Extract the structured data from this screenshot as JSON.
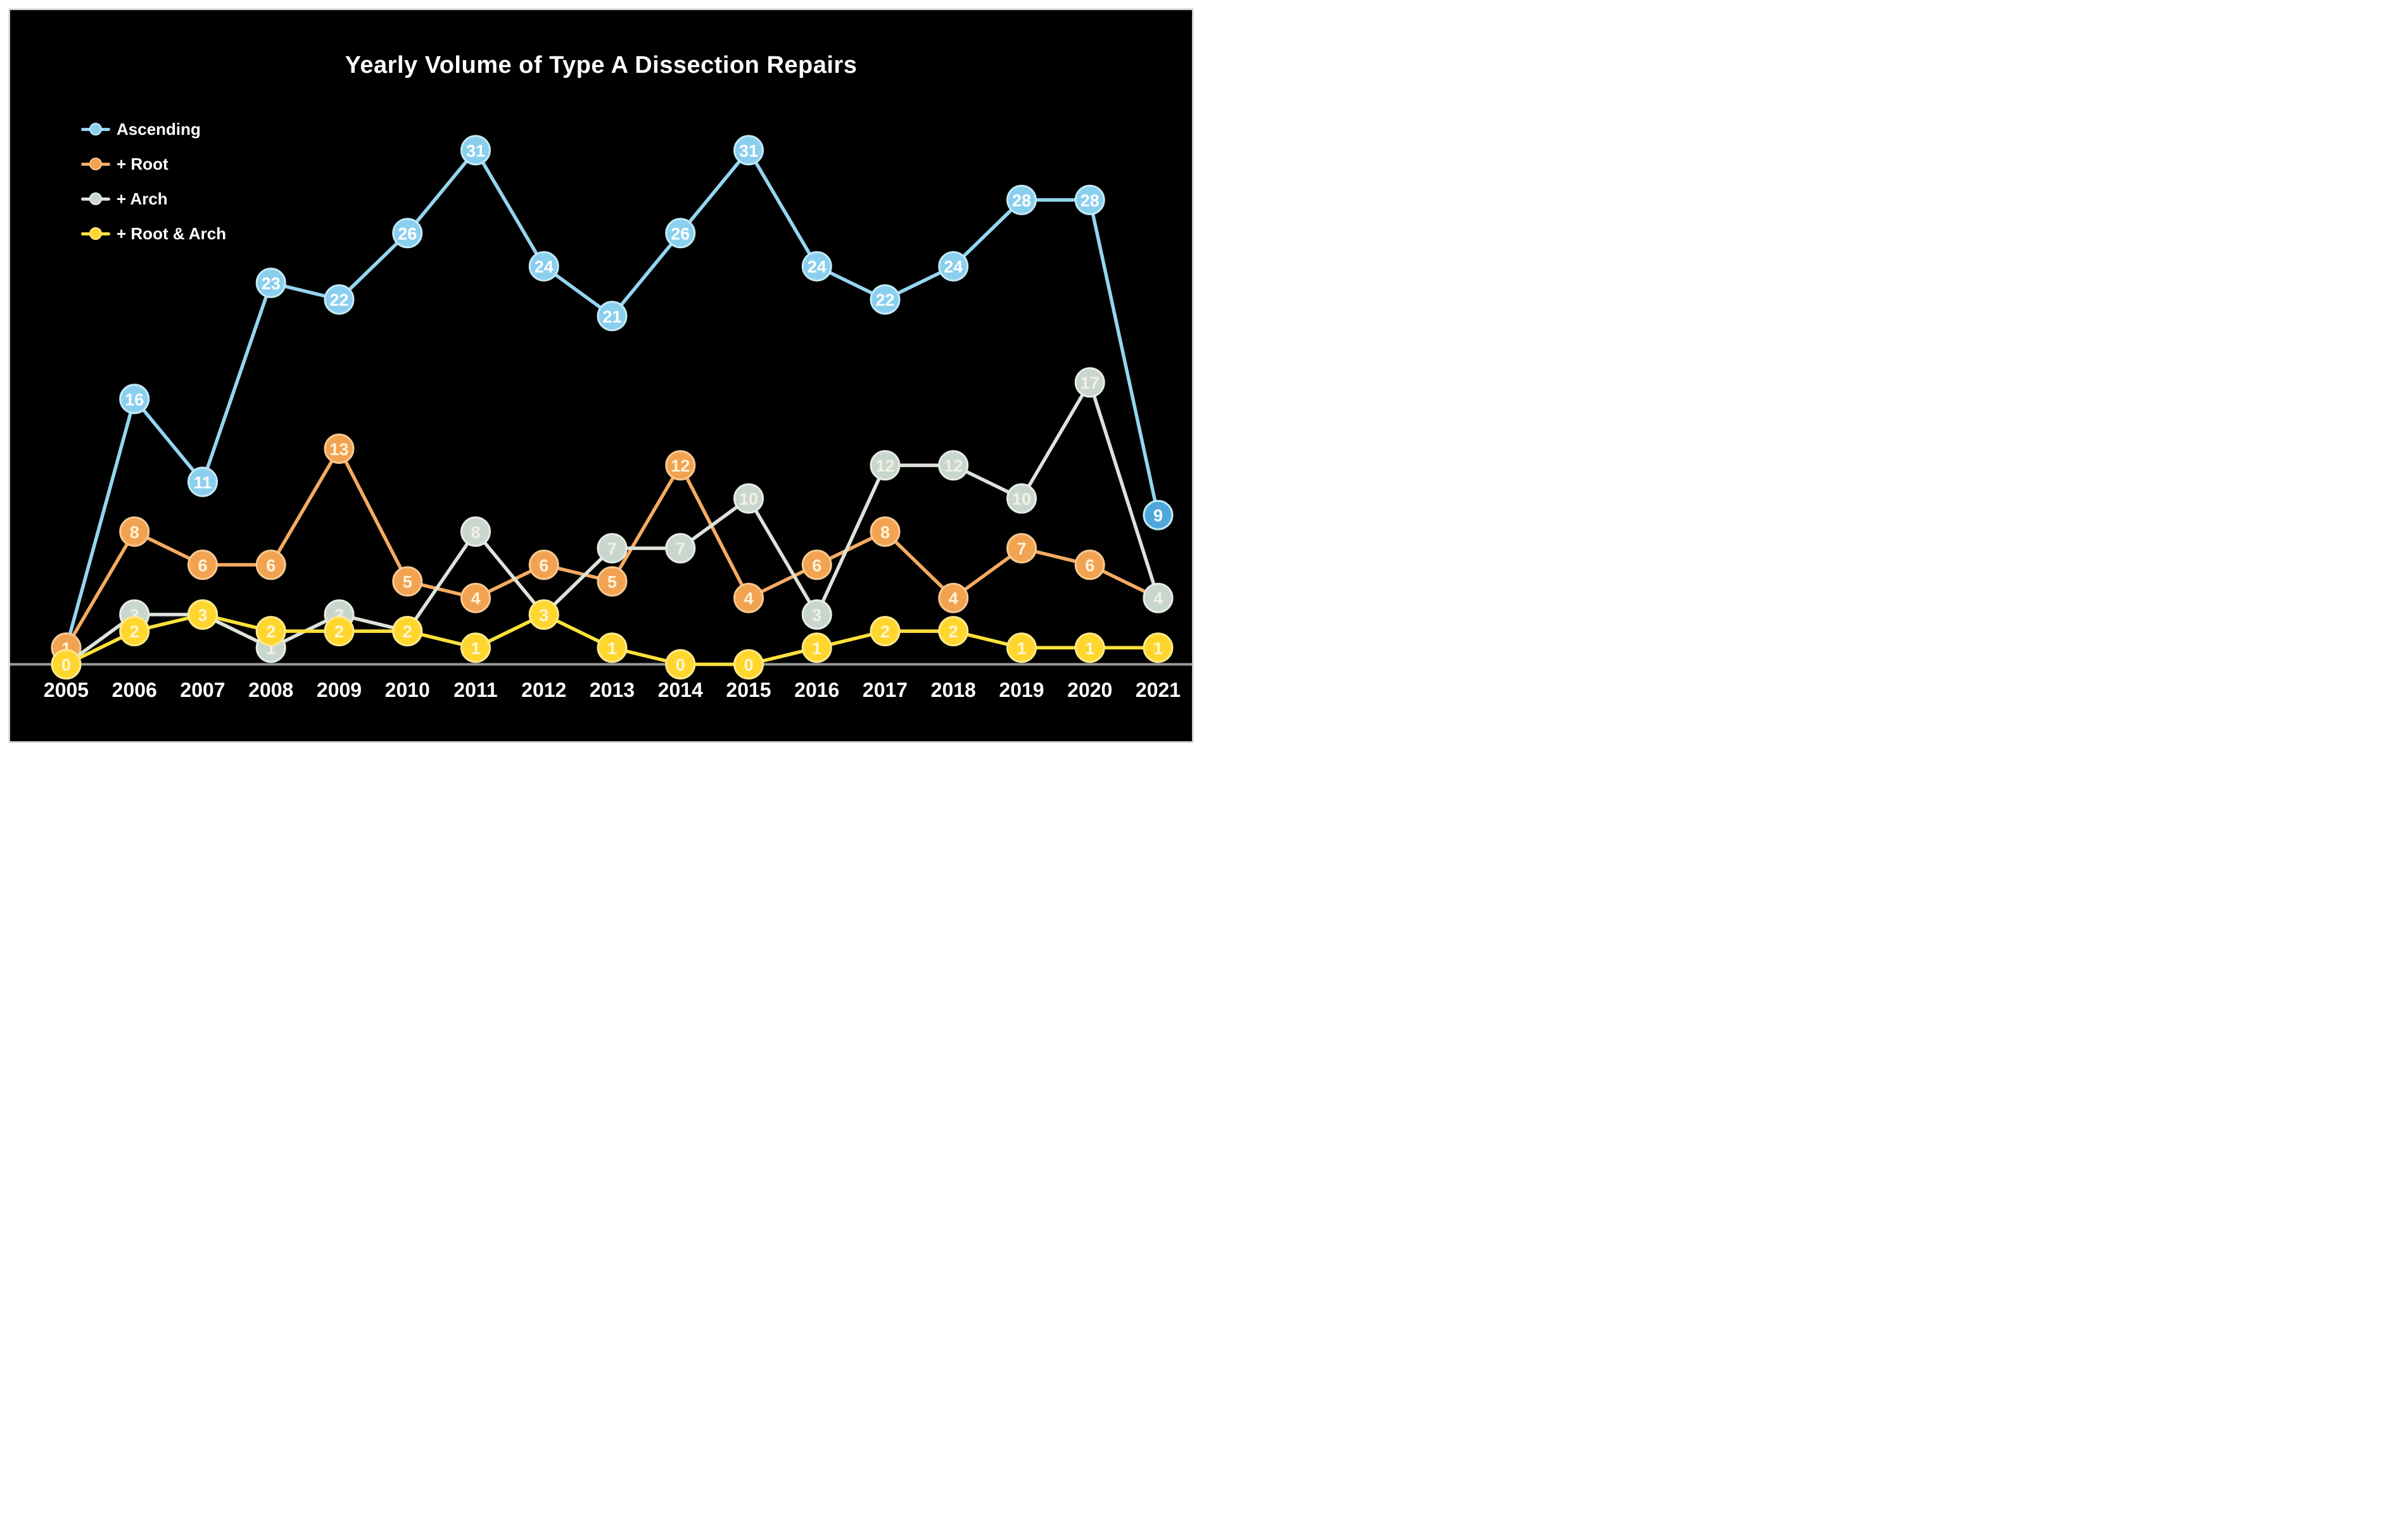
{
  "page": {
    "background_color": "#ffffff",
    "panel_background_color": "#000000",
    "panel_border_color": "#c8d1ca"
  },
  "axis": {
    "baseline_color": "#9a9a9a",
    "tick_label_color": "#ffffff"
  },
  "chart_data": {
    "type": "line",
    "title": "Yearly Volume of Type A Dissection Repairs",
    "xlabel": "",
    "ylabel": "",
    "ylim": [
      0,
      33
    ],
    "grid": false,
    "legend_position": "top-left",
    "point_labels": "values shown inside each marker",
    "categories": [
      "2005",
      "2006",
      "2007",
      "2008",
      "2009",
      "2010",
      "2011",
      "2012",
      "2013",
      "2014",
      "2015",
      "2016",
      "2017",
      "2018",
      "2019",
      "2020",
      "2021"
    ],
    "series": [
      {
        "name": "Ascending",
        "values": [
          1,
          16,
          11,
          23,
          22,
          26,
          31,
          24,
          21,
          26,
          31,
          24,
          22,
          24,
          28,
          28,
          9
        ],
        "line_color": "#94d6f1",
        "marker_fill": "#8bcfee",
        "marker_stroke": "#c4e9f8",
        "last_marker_fill": "#4fa8dc",
        "label_color": "#ffffff",
        "note": "2005 marker hidden behind + Root marker"
      },
      {
        "name": "+ Root",
        "values": [
          1,
          8,
          6,
          6,
          13,
          5,
          4,
          6,
          5,
          12,
          4,
          6,
          8,
          4,
          7,
          6,
          4
        ],
        "line_color": "#f5ab61",
        "marker_fill": "#f2a351",
        "marker_stroke": "#f7c993",
        "label_color": "#fcf3dd",
        "note": "2021 marker hidden behind + Arch marker"
      },
      {
        "name": "+ Arch",
        "values": [
          0,
          3,
          3,
          1,
          3,
          2,
          8,
          3,
          7,
          7,
          10,
          3,
          12,
          12,
          10,
          17,
          4
        ],
        "line_color": "#dce3da",
        "marker_fill": "#c9d6cd",
        "marker_stroke": "#e7ece6",
        "label_color": "#f2f0e4",
        "note": "markers at 2005, 2007, 2010 and 2012 hidden behind + Root & Arch markers"
      },
      {
        "name": "+ Root & Arch",
        "values": [
          0,
          2,
          3,
          2,
          2,
          2,
          1,
          3,
          1,
          0,
          0,
          1,
          2,
          2,
          1,
          1,
          1
        ],
        "line_color": "#ffe13a",
        "marker_fill": "#ffd62e",
        "marker_stroke": "#ffe98d",
        "label_color": "#fdf6d9",
        "note": ""
      }
    ]
  }
}
